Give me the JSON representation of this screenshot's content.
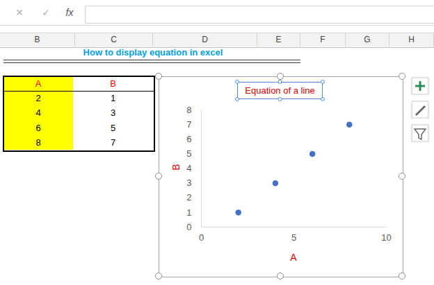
{
  "toolbar": [
    "✕",
    "✓",
    "fx"
  ],
  "sheet": {
    "columns": [
      "B",
      "C",
      "D",
      "E",
      "F",
      "G",
      "H"
    ],
    "heading": "How to display equation in excel",
    "table": {
      "header": [
        "A",
        "B"
      ],
      "rows": [
        [
          2,
          1
        ],
        [
          4,
          3
        ],
        [
          6,
          5
        ],
        [
          8,
          7
        ]
      ]
    }
  },
  "chart_data": {
    "type": "scatter",
    "title": "Equation of a line",
    "x": [
      2,
      4,
      6,
      8
    ],
    "values": [
      1,
      3,
      5,
      7
    ],
    "color": "#4472c4",
    "x_label": "A",
    "y_label": "B",
    "xlim": [
      0,
      10
    ],
    "xticks": [
      0,
      5,
      10
    ],
    "ylim": [
      0,
      8
    ],
    "yticks": [
      0,
      1,
      2,
      3,
      4,
      5,
      6,
      7,
      8
    ],
    "grid": false,
    "marker": "circle"
  }
}
